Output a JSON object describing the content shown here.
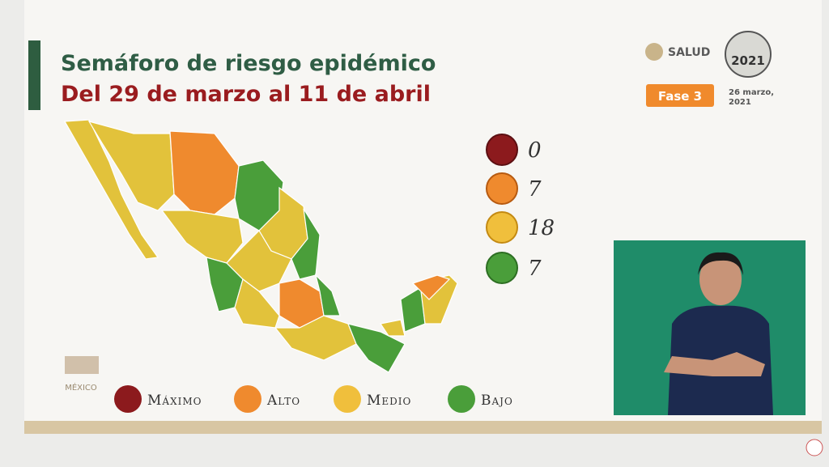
{
  "header": {
    "title": "Semáforo de riesgo epidémico",
    "subtitle": "Del 29 de marzo al 11 de abril"
  },
  "branding": {
    "ministry": "SALUD",
    "logo_year": "2021",
    "footer_logo": "MÉXICO"
  },
  "phase": {
    "label": "Fase 3",
    "date_line1": "26 marzo,",
    "date_line2": "2021"
  },
  "counts": [
    {
      "level": "Máximo",
      "count": 0
    },
    {
      "level": "Alto",
      "count": 7
    },
    {
      "level": "Medio",
      "count": 18
    },
    {
      "level": "Bajo",
      "count": 7
    }
  ]
}
